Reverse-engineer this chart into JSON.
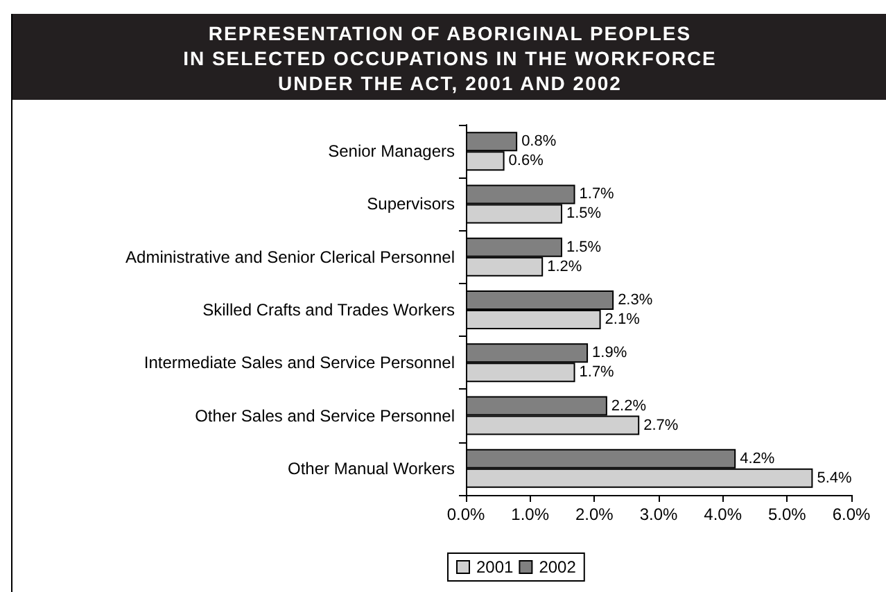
{
  "chart_data": {
    "type": "bar",
    "orientation": "horizontal",
    "title": "REPRESENTATION OF ABORIGINAL PEOPLES\nIN SELECTED OCCUPATIONS IN THE WORKFORCE\nUNDER THE ACT, 2001 AND 2002",
    "categories": [
      "Senior Managers",
      "Supervisors",
      "Administrative and Senior Clerical Personnel",
      "Skilled Crafts and Trades Workers",
      "Intermediate Sales and Service Personnel",
      "Other Sales and Service Personnel",
      "Other Manual Workers"
    ],
    "series": [
      {
        "name": "2001",
        "color": "#d0d0d0",
        "values": [
          0.6,
          1.5,
          1.2,
          2.1,
          1.7,
          2.7,
          5.4
        ],
        "value_labels": [
          "0.6%",
          "1.5%",
          "1.2%",
          "2.1%",
          "1.7%",
          "2.7%",
          "5.4%"
        ]
      },
      {
        "name": "2002",
        "color": "#808080",
        "values": [
          0.8,
          1.7,
          1.5,
          2.3,
          1.9,
          2.2,
          4.2
        ],
        "value_labels": [
          "0.8%",
          "1.7%",
          "1.5%",
          "2.3%",
          "1.9%",
          "2.2%",
          "4.2%"
        ]
      }
    ],
    "xlim": [
      0,
      6
    ],
    "xticks": [
      {
        "value": 0,
        "label": "0.0%"
      },
      {
        "value": 1,
        "label": "1.0%"
      },
      {
        "value": 2,
        "label": "2.0%"
      },
      {
        "value": 3,
        "label": "3.0%"
      },
      {
        "value": 4,
        "label": "4.0%"
      },
      {
        "value": 5,
        "label": "5.0%"
      },
      {
        "value": 6,
        "label": "6.0%"
      }
    ],
    "grid": false,
    "legend": "bottom"
  }
}
